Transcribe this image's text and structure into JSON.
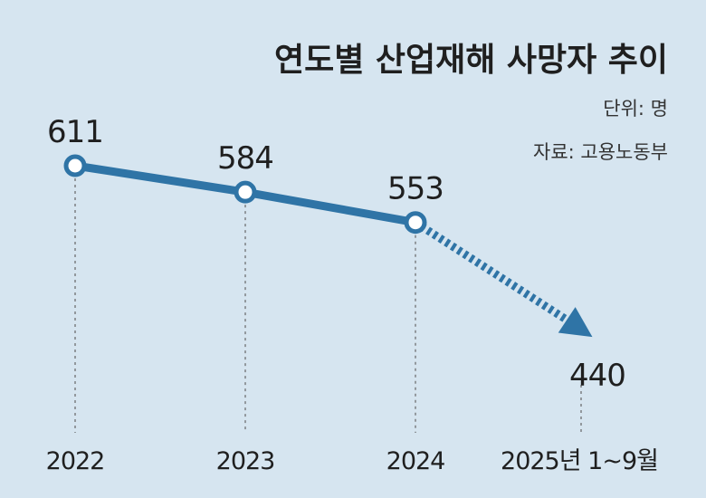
{
  "chart_data": {
    "type": "line",
    "title": "연도별 산업재해 사망자 추이",
    "unit_note": "단위: 명",
    "source_note": "자료: 고용노동부",
    "categories": [
      "2022",
      "2023",
      "2024",
      "2025년 1~9월"
    ],
    "values": [
      611,
      584,
      553,
      440
    ],
    "value_labels": [
      "611",
      "584",
      "553",
      "440"
    ],
    "projected_segment": {
      "from": "2024",
      "to": "2025년 1~9월",
      "style": "dotted-arrow"
    },
    "grid": false,
    "legend": "none",
    "colors": {
      "background": "#d6e5f0",
      "line": "#2f74a6",
      "marker_fill": "#ffffff",
      "text": "#1f1f1f"
    }
  }
}
